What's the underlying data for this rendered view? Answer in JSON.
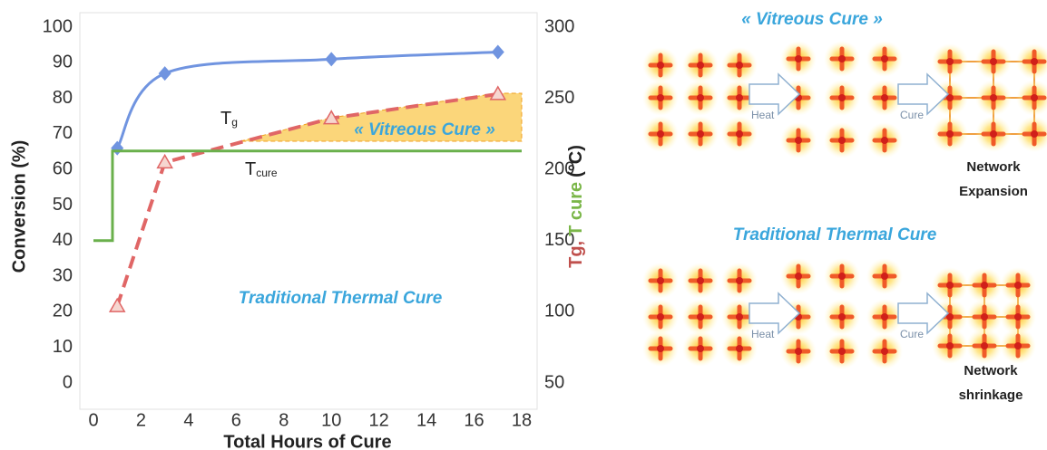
{
  "chart_data": {
    "type": "line",
    "xlabel": "Total Hours of Cure",
    "ylabel": "Conversion (%)",
    "ylabel_color": "#4a86c8",
    "y2label_parts": [
      {
        "text": "Tg,",
        "color": "#c0504d"
      },
      {
        "text": "T cure",
        "color": "#7ab648"
      },
      {
        "text": "(°C)",
        "color": "#222222"
      }
    ],
    "xlim": [
      0,
      18
    ],
    "xticks": [
      0,
      2,
      4,
      6,
      8,
      10,
      12,
      14,
      16,
      18
    ],
    "ylim": [
      0,
      100
    ],
    "yticks": [
      0,
      10,
      20,
      30,
      40,
      50,
      60,
      70,
      80,
      90,
      100
    ],
    "y2lim": [
      50,
      300
    ],
    "y2ticks": [
      50,
      100,
      150,
      200,
      250,
      300
    ],
    "series": [
      {
        "color": "#7094e0",
        "x": [
          1,
          3,
          10,
          17
        ],
        "values": [
          66,
          87,
          91,
          93
        ],
        "marker": "diamond",
        "smooth": true
      },
      {
        "axis": "y2",
        "color": "#e06666",
        "dash": true,
        "x": [
          1,
          3,
          10,
          17
        ],
        "values": [
          104,
          205,
          236,
          253
        ],
        "marker": "triangle"
      },
      {
        "axis": "y2",
        "color": "#6ab04c",
        "x": [
          0,
          0.8,
          0.8,
          18
        ],
        "values": [
          150,
          150,
          213,
          213
        ]
      }
    ],
    "annotations": [
      {
        "base": "T",
        "sub": "g"
      },
      {
        "base": "T",
        "sub": "cure"
      },
      {
        "text": "« Vitreous Cure »"
      },
      {
        "text": "Traditional Thermal Cure"
      }
    ]
  },
  "diagram": {
    "top_title": "« Vitreous Cure »",
    "top_heat": "Heat",
    "top_cure": "Cure",
    "top_result": [
      "Network",
      "Expansion"
    ],
    "bottom_title": "Traditional Thermal Cure",
    "bottom_heat": "Heat",
    "bottom_cure": "Cure",
    "bottom_result": [
      "Network",
      "shrinkage"
    ]
  }
}
